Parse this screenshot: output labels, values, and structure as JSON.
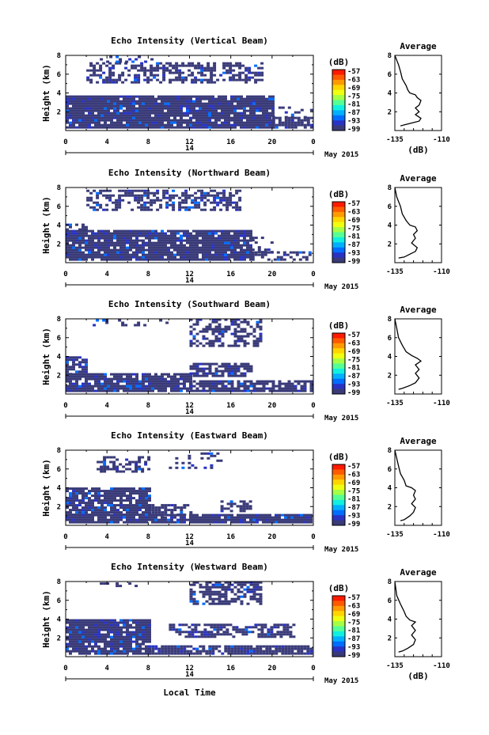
{
  "panels": [
    {
      "title": "Echo Intensity (Vertical Beam)",
      "profile": [
        [
          -132,
          0.5
        ],
        [
          -130,
          0.6
        ],
        [
          -126,
          0.8
        ],
        [
          -122,
          1.0
        ],
        [
          -121,
          1.3
        ],
        [
          -124,
          1.7
        ],
        [
          -122,
          2.0
        ],
        [
          -124,
          2.4
        ],
        [
          -122,
          2.7
        ],
        [
          -121,
          3.2
        ],
        [
          -123,
          3.5
        ],
        [
          -124,
          3.8
        ],
        [
          -127,
          4.0
        ],
        [
          -128,
          4.3
        ],
        [
          -129,
          4.8
        ],
        [
          -131,
          5.5
        ],
        [
          -132,
          6.3
        ],
        [
          -133,
          7.0
        ],
        [
          -135,
          8.0
        ]
      ]
    },
    {
      "title": "Echo Intensity (Northward Beam)",
      "profile": [
        [
          -133,
          0.5
        ],
        [
          -130,
          0.6
        ],
        [
          -127,
          0.9
        ],
        [
          -124,
          1.2
        ],
        [
          -123,
          1.6
        ],
        [
          -126,
          2.1
        ],
        [
          -124,
          2.6
        ],
        [
          -125,
          3.0
        ],
        [
          -123,
          3.4
        ],
        [
          -124,
          3.8
        ],
        [
          -127,
          4.0
        ],
        [
          -129,
          4.5
        ],
        [
          -131,
          5.2
        ],
        [
          -132,
          6.0
        ],
        [
          -134,
          7.0
        ],
        [
          -135,
          8.0
        ]
      ]
    },
    {
      "title": "Echo Intensity (Southward Beam)",
      "profile": [
        [
          -133,
          0.5
        ],
        [
          -131,
          0.6
        ],
        [
          -127,
          0.9
        ],
        [
          -124,
          1.2
        ],
        [
          -122,
          1.7
        ],
        [
          -124,
          2.2
        ],
        [
          -122,
          2.6
        ],
        [
          -124,
          3.1
        ],
        [
          -121,
          3.5
        ],
        [
          -123,
          3.8
        ],
        [
          -126,
          4.1
        ],
        [
          -129,
          4.5
        ],
        [
          -131,
          5.2
        ],
        [
          -133,
          6.0
        ],
        [
          -134,
          7.0
        ],
        [
          -135,
          8.0
        ]
      ]
    },
    {
      "title": "Echo Intensity (Eastward Beam)",
      "profile": [
        [
          -132,
          0.5
        ],
        [
          -130,
          0.6
        ],
        [
          -127,
          1.0
        ],
        [
          -125,
          1.4
        ],
        [
          -124,
          1.9
        ],
        [
          -126,
          2.3
        ],
        [
          -124,
          2.8
        ],
        [
          -125,
          3.2
        ],
        [
          -124,
          3.7
        ],
        [
          -126,
          4.0
        ],
        [
          -129,
          4.2
        ],
        [
          -130,
          4.8
        ],
        [
          -132,
          5.5
        ],
        [
          -133,
          6.3
        ],
        [
          -135,
          8.0
        ]
      ]
    },
    {
      "title": "Echo Intensity (Westward Beam)",
      "profile": [
        [
          -133,
          0.5
        ],
        [
          -131,
          0.6
        ],
        [
          -128,
          0.9
        ],
        [
          -125,
          1.3
        ],
        [
          -124,
          1.8
        ],
        [
          -126,
          2.3
        ],
        [
          -124,
          2.8
        ],
        [
          -126,
          3.3
        ],
        [
          -124,
          3.7
        ],
        [
          -127,
          3.9
        ],
        [
          -129,
          4.3
        ],
        [
          -130,
          4.8
        ],
        [
          -132,
          5.6
        ],
        [
          -134,
          6.5
        ],
        [
          -135,
          8.0
        ]
      ]
    }
  ],
  "axes": {
    "y_label": "Height (km)",
    "y_ticks": [
      "2",
      "4",
      "6",
      "8"
    ],
    "x_ticks": [
      "0",
      "4",
      "8",
      "12",
      "16",
      "20",
      "0"
    ],
    "date_label": "14",
    "month_label": "May 2015",
    "x_label": "Local Time"
  },
  "colorbar": {
    "unit": "(dB)",
    "labels": [
      "-57",
      "-63",
      "-69",
      "-75",
      "-81",
      "-87",
      "-93",
      "-99"
    ],
    "colors": [
      "#ff1a00",
      "#ff5a00",
      "#ff9a00",
      "#ffd500",
      "#f0ff10",
      "#a5ff45",
      "#55ff95",
      "#10f0e0",
      "#00b0ff",
      "#006dff",
      "#2833c4",
      "#393a78"
    ]
  },
  "profile_axes": {
    "title": "Average",
    "x_ticks": [
      "-135",
      "-110"
    ],
    "x_label": "(dB)",
    "y_ticks": [
      "2",
      "4",
      "6",
      "8"
    ]
  },
  "chart_data": [
    {
      "type": "heatmap",
      "title": "Echo Intensity (Vertical Beam)",
      "x_unit": "Local Time (h)",
      "xlim": [
        0,
        24
      ],
      "ylim": [
        0,
        8
      ],
      "ylabel": "Height (km)",
      "colorbar_range_dB": [
        -99,
        -57
      ]
    },
    {
      "type": "heatmap",
      "title": "Echo Intensity (Northward Beam)",
      "xlim": [
        0,
        24
      ],
      "ylim": [
        0,
        8
      ],
      "ylabel": "Height (km)",
      "colorbar_range_dB": [
        -99,
        -57
      ]
    },
    {
      "type": "heatmap",
      "title": "Echo Intensity (Southward Beam)",
      "xlim": [
        0,
        24
      ],
      "ylim": [
        0,
        8
      ],
      "ylabel": "Height (km)",
      "colorbar_range_dB": [
        -99,
        -57
      ]
    },
    {
      "type": "heatmap",
      "title": "Echo Intensity (Eastward Beam)",
      "xlim": [
        0,
        24
      ],
      "ylim": [
        0,
        8
      ],
      "ylabel": "Height (km)",
      "colorbar_range_dB": [
        -99,
        -57
      ]
    },
    {
      "type": "heatmap",
      "title": "Echo Intensity (Westward Beam)",
      "xlim": [
        0,
        24
      ],
      "ylim": [
        0,
        8
      ],
      "ylabel": "Height (km)",
      "colorbar_range_dB": [
        -99,
        -57
      ]
    },
    {
      "type": "line",
      "title": "Average",
      "xlabel": "(dB)",
      "xlim": [
        -135,
        -110
      ],
      "ylim": [
        0,
        8
      ]
    }
  ]
}
